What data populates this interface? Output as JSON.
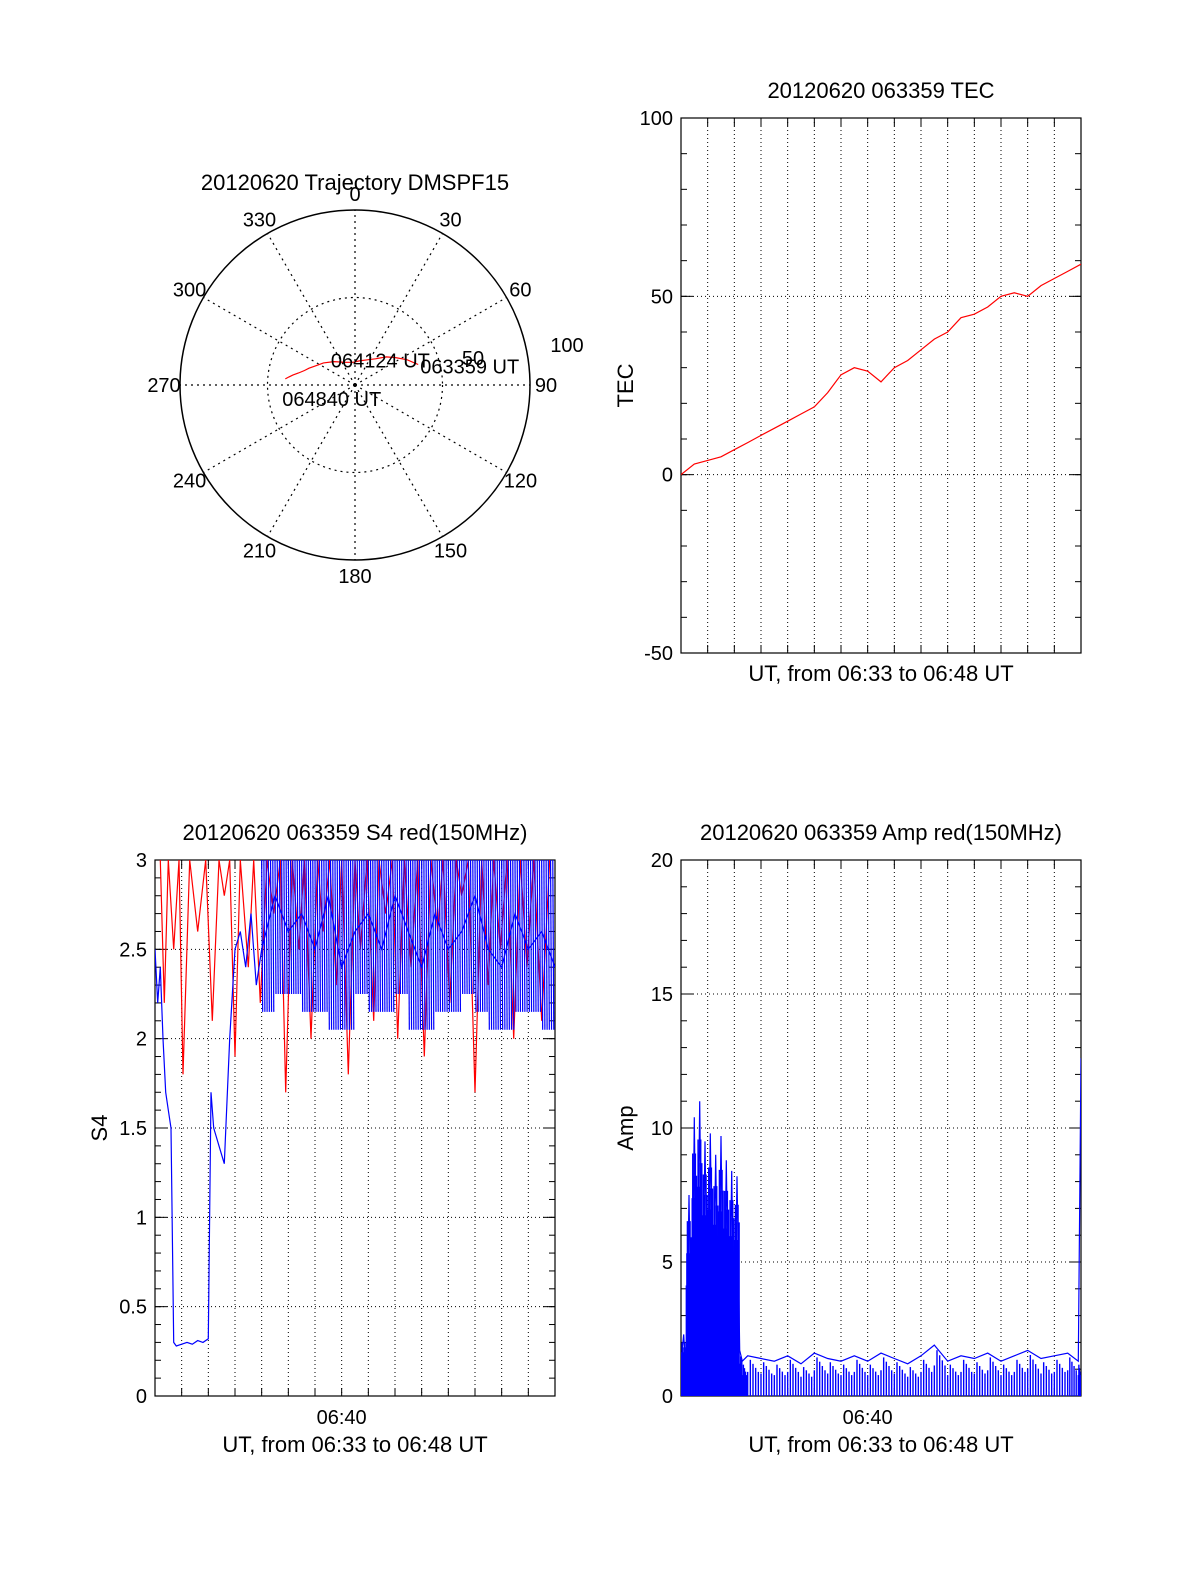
{
  "chart_data": [
    {
      "type": "polar",
      "title": "20120620 Trajectory DMSPF15",
      "azimuth_labels": [
        "0",
        "30",
        "60",
        "90",
        "120",
        "150",
        "180",
        "210",
        "240",
        "270",
        "300",
        "330"
      ],
      "azimuths_deg": [
        0,
        30,
        60,
        90,
        120,
        150,
        180,
        210,
        240,
        270,
        300,
        330
      ],
      "elevation_labels": [
        "50",
        "100"
      ],
      "elevation_rings": [
        50,
        100
      ],
      "track_color": "#ff0000",
      "track": [
        {
          "az": 72,
          "el": 62
        },
        {
          "az": 64,
          "el": 67
        },
        {
          "az": 56,
          "el": 72
        },
        {
          "az": 48,
          "el": 76
        },
        {
          "az": 38,
          "el": 81
        },
        {
          "az": 26,
          "el": 84
        },
        {
          "az": 10,
          "el": 86
        },
        {
          "az": 355,
          "el": 87
        },
        {
          "az": 338,
          "el": 86
        },
        {
          "az": 318,
          "el": 82
        },
        {
          "az": 305,
          "el": 78
        },
        {
          "az": 296,
          "el": 75
        },
        {
          "az": 290,
          "el": 72
        },
        {
          "az": 286,
          "el": 70
        },
        {
          "az": 282,
          "el": 67
        },
        {
          "az": 279,
          "el": 64
        },
        {
          "az": 277,
          "el": 62
        },
        {
          "az": 275,
          "el": 60
        }
      ],
      "annotations": [
        {
          "text": "063359 UT",
          "az": 72,
          "el": 62
        },
        {
          "text": "064124 UT",
          "az": 318,
          "el": 82
        },
        {
          "text": "064840 UT",
          "az": 275,
          "el": 60
        }
      ]
    },
    {
      "type": "line",
      "title": "20120620 063359 TEC",
      "xlabel": "UT, from 06:33 to 06:48 UT",
      "ylabel": "TEC",
      "ylim": [
        -50,
        100
      ],
      "yticks": [
        "-50",
        "0",
        "50",
        "100"
      ],
      "xlim": [
        0,
        15
      ],
      "grid": true,
      "series": [
        {
          "color": "#ff0000",
          "x": [
            0,
            0.5,
            1,
            1.5,
            2,
            2.5,
            3,
            3.5,
            4,
            4.5,
            5,
            5.5,
            6,
            6.5,
            7,
            7.5,
            8,
            8.5,
            9,
            9.5,
            10,
            10.5,
            11,
            11.5,
            12,
            12.5,
            13,
            13.5,
            14,
            14.5,
            15
          ],
          "y": [
            0,
            3,
            4,
            5,
            7,
            9,
            11,
            13,
            15,
            17,
            19,
            23,
            28,
            30,
            29,
            26,
            30,
            32,
            35,
            38,
            40,
            44,
            45,
            47,
            50,
            51,
            50,
            53,
            55,
            57,
            59
          ]
        }
      ]
    },
    {
      "type": "line",
      "title": "20120620 063359 S4 red(150MHz)",
      "xlabel": "UT, from 06:33 to 06:48 UT",
      "ylabel": "S4",
      "ylim": [
        0,
        3
      ],
      "yticks": [
        "0",
        "0.5",
        "1",
        "1.5",
        "2",
        "2.5",
        "3"
      ],
      "xlim": [
        0,
        15
      ],
      "xtick_labels": [
        "06:40"
      ],
      "xtick_values": [
        7
      ],
      "grid": true,
      "series": [
        {
          "color": "#ff0000",
          "x": [
            0.2,
            0.35,
            0.5,
            0.7,
            0.9,
            1.05,
            1.3,
            1.6,
            1.9,
            2.15,
            2.4,
            2.6,
            2.8,
            3.0,
            3.2,
            3.5,
            3.7,
            3.95,
            4.2,
            4.45,
            4.7,
            4.9,
            5.15,
            5.4,
            5.6,
            5.85,
            6.1,
            6.3,
            6.55,
            6.8,
            7.0,
            7.25,
            7.5,
            7.7,
            7.95,
            8.2,
            8.4,
            8.65,
            8.9,
            9.1,
            9.35,
            9.6,
            9.85,
            10.1,
            10.35,
            10.6,
            10.8,
            11.05,
            11.3,
            11.5,
            11.75,
            12.0,
            12.25,
            12.5,
            12.7,
            12.95,
            13.2,
            13.45,
            13.7,
            13.95,
            14.2,
            14.5,
            14.8
          ],
          "y": [
            3,
            2.2,
            3,
            2.5,
            3,
            1.8,
            3,
            2.6,
            3,
            2.1,
            3,
            2.8,
            3,
            1.9,
            3,
            2.4,
            3,
            2.2,
            3,
            2.7,
            3,
            1.7,
            3,
            2.5,
            3,
            2.0,
            3,
            2.6,
            3,
            2.3,
            3,
            1.8,
            3,
            2.5,
            3,
            2.1,
            3,
            2.7,
            3,
            2.0,
            3,
            2.4,
            3,
            1.9,
            3,
            2.6,
            3,
            2.2,
            3,
            2.8,
            3,
            1.7,
            3,
            2.3,
            3,
            2.5,
            3,
            2.0,
            3,
            2.4,
            3,
            2.1,
            3
          ]
        },
        {
          "color": "#0000ff",
          "x": [
            0,
            0.1,
            0.2,
            0.3,
            0.4,
            0.5,
            0.6,
            0.7,
            0.8,
            1.0,
            1.2,
            1.4,
            1.6,
            1.8,
            2.0,
            2.1,
            2.2,
            2.4,
            2.6,
            2.8,
            3.0,
            3.2,
            3.4,
            3.6,
            3.8,
            4.0,
            4.5,
            5.0,
            5.5,
            6.0,
            6.5,
            7.0,
            7.5,
            8.0,
            8.5,
            9.0,
            9.5,
            10.0,
            10.5,
            11.0,
            11.5,
            12.0,
            12.5,
            13.0,
            13.5,
            14.0,
            14.5,
            15.0
          ],
          "y": [
            2.5,
            2.2,
            2.4,
            2.0,
            1.7,
            1.6,
            1.5,
            0.3,
            0.28,
            0.29,
            0.3,
            0.29,
            0.31,
            0.3,
            0.32,
            1.7,
            1.5,
            1.4,
            1.3,
            2.0,
            2.5,
            2.6,
            2.4,
            2.7,
            2.3,
            2.5,
            2.8,
            2.6,
            2.7,
            2.5,
            2.8,
            2.4,
            2.6,
            2.7,
            2.5,
            2.8,
            2.6,
            2.4,
            2.7,
            2.5,
            2.6,
            2.8,
            2.5,
            2.4,
            2.7,
            2.5,
            2.6,
            2.4
          ]
        }
      ]
    },
    {
      "type": "line",
      "title": "20120620 063359 Amp red(150MHz)",
      "xlabel": "UT, from 06:33 to 06:48 UT",
      "ylabel": "Amp",
      "ylim": [
        0,
        20
      ],
      "yticks": [
        "0",
        "5",
        "10",
        "15",
        "20"
      ],
      "xlim": [
        0,
        15
      ],
      "xtick_labels": [
        "06:40"
      ],
      "xtick_values": [
        7
      ],
      "grid": true,
      "series": [
        {
          "color": "#ff0000",
          "x": [
            0.4,
            2.2
          ],
          "y": [
            0.1,
            0.1
          ]
        },
        {
          "color": "#0000ff",
          "x": [
            0,
            0.1,
            0.2,
            0.3,
            0.4,
            0.5,
            0.6,
            0.7,
            0.8,
            0.9,
            1.0,
            1.1,
            1.2,
            1.3,
            1.4,
            1.5,
            1.6,
            1.7,
            1.8,
            1.9,
            2.0,
            2.1,
            2.2,
            2.3,
            2.5,
            3.0,
            3.5,
            4.0,
            4.5,
            5.0,
            5.5,
            6.0,
            6.5,
            7.0,
            7.5,
            8.0,
            8.5,
            9.0,
            9.5,
            10.0,
            10.5,
            11.0,
            11.5,
            12.0,
            12.5,
            13.0,
            13.5,
            14.0,
            14.5,
            14.9,
            15.0
          ],
          "y": [
            1.2,
            2.3,
            0.5,
            7.5,
            0.8,
            10.4,
            1.5,
            11.0,
            2.0,
            9.5,
            1.8,
            9.8,
            2.2,
            9.0,
            1.6,
            9.7,
            1.5,
            8.8,
            1.2,
            8.4,
            1.0,
            8.2,
            1.7,
            1.3,
            1.5,
            1.4,
            1.3,
            1.5,
            1.2,
            1.6,
            1.4,
            1.3,
            1.5,
            1.3,
            1.6,
            1.4,
            1.2,
            1.5,
            1.9,
            1.3,
            1.5,
            1.4,
            1.6,
            1.3,
            1.5,
            1.7,
            1.4,
            1.5,
            1.6,
            1.3,
            12.6
          ]
        }
      ]
    }
  ]
}
